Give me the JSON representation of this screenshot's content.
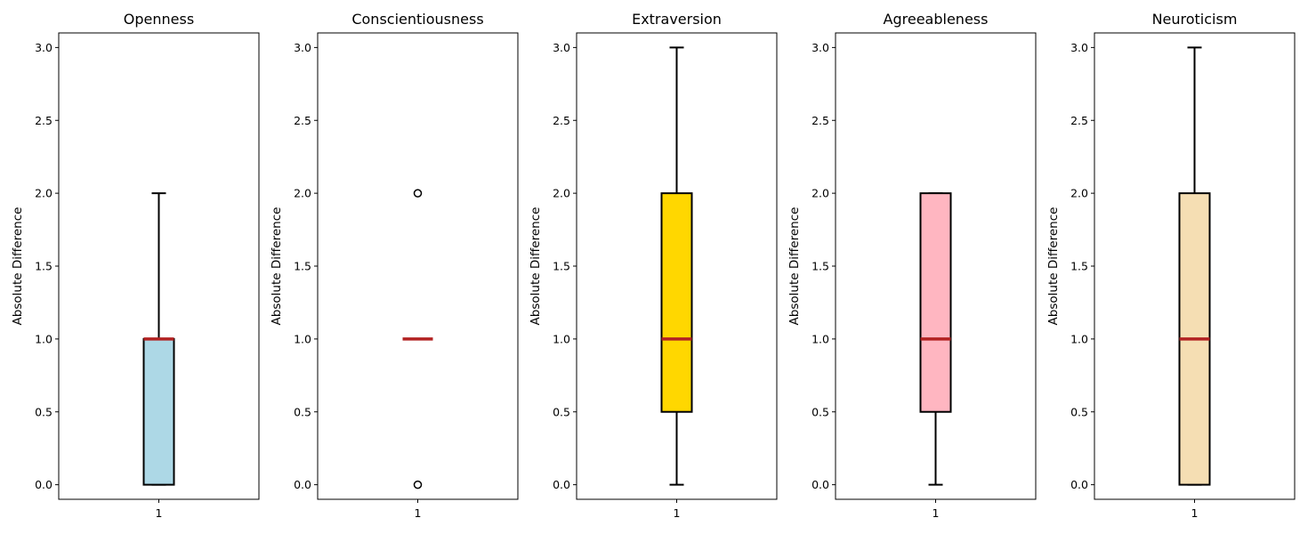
{
  "chart_data": [
    {
      "type": "box",
      "title": "Openness",
      "ylabel": "Absolute Difference",
      "categories": [
        "1"
      ],
      "ylim": [
        -0.1,
        3.1
      ],
      "yticks": [
        "0.0",
        "0.5",
        "1.0",
        "1.5",
        "2.0",
        "2.5",
        "3.0"
      ],
      "box": {
        "whisker_low": 0,
        "q1": 0,
        "median": 1,
        "q3": 1,
        "whisker_high": 2
      },
      "outliers": [],
      "fill": "#add8e6",
      "median_color": "#b22222"
    },
    {
      "type": "box",
      "title": "Conscientiousness",
      "ylabel": "Absolute Difference",
      "categories": [
        "1"
      ],
      "ylim": [
        -0.1,
        3.1
      ],
      "yticks": [
        "0.0",
        "0.5",
        "1.0",
        "1.5",
        "2.0",
        "2.5",
        "3.0"
      ],
      "box": {
        "whisker_low": 1,
        "q1": 1,
        "median": 1,
        "q3": 1,
        "whisker_high": 1
      },
      "outliers": [
        0,
        2
      ],
      "fill": "#90ee90",
      "median_color": "#b22222"
    },
    {
      "type": "box",
      "title": "Extraversion",
      "ylabel": "Absolute Difference",
      "categories": [
        "1"
      ],
      "ylim": [
        -0.1,
        3.1
      ],
      "yticks": [
        "0.0",
        "0.5",
        "1.0",
        "1.5",
        "2.0",
        "2.5",
        "3.0"
      ],
      "box": {
        "whisker_low": 0,
        "q1": 0.5,
        "median": 1,
        "q3": 2,
        "whisker_high": 3
      },
      "outliers": [],
      "fill": "#ffd700",
      "median_color": "#b22222"
    },
    {
      "type": "box",
      "title": "Agreeableness",
      "ylabel": "Absolute Difference",
      "categories": [
        "1"
      ],
      "ylim": [
        -0.1,
        3.1
      ],
      "yticks": [
        "0.0",
        "0.5",
        "1.0",
        "1.5",
        "2.0",
        "2.5",
        "3.0"
      ],
      "box": {
        "whisker_low": 0,
        "q1": 0.5,
        "median": 1,
        "q3": 2,
        "whisker_high": 2
      },
      "outliers": [],
      "fill": "#ffb6c1",
      "median_color": "#b22222"
    },
    {
      "type": "box",
      "title": "Neuroticism",
      "ylabel": "Absolute Difference",
      "categories": [
        "1"
      ],
      "ylim": [
        -0.1,
        3.1
      ],
      "yticks": [
        "0.0",
        "0.5",
        "1.0",
        "1.5",
        "2.0",
        "2.5",
        "3.0"
      ],
      "box": {
        "whisker_low": 0,
        "q1": 0,
        "median": 1,
        "q3": 2,
        "whisker_high": 3
      },
      "outliers": [],
      "fill": "#f5deb3",
      "median_color": "#b22222"
    }
  ]
}
